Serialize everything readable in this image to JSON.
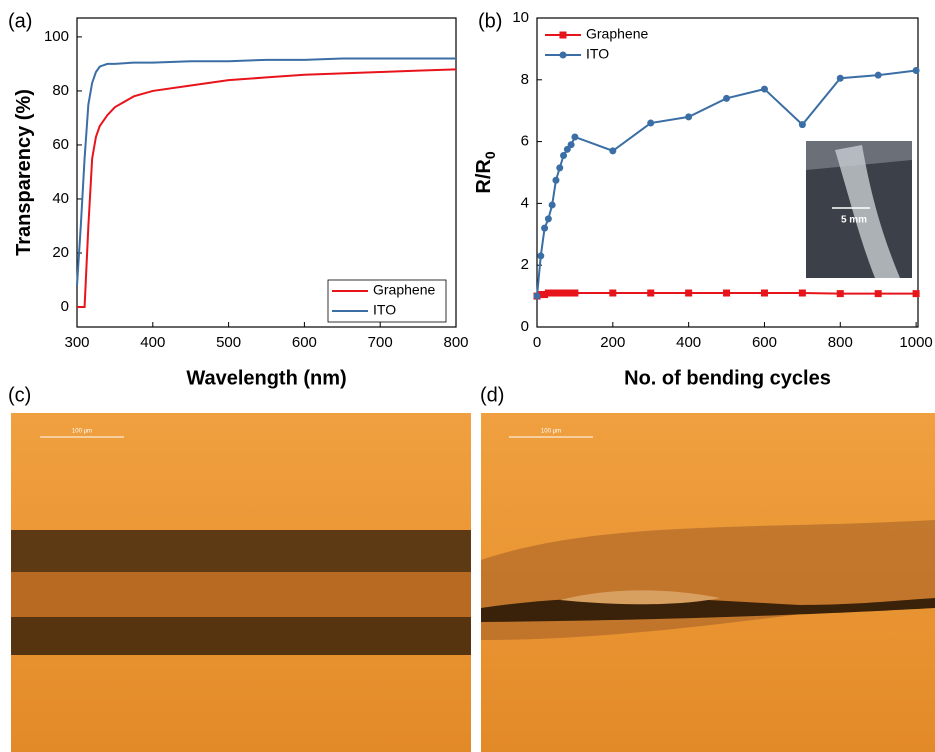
{
  "chart_data": [
    {
      "type": "line",
      "panel_label": "(a)",
      "xlabel": "Wavelength (nm)",
      "ylabel": "Transparency (%)",
      "x": [
        300,
        305,
        310,
        315,
        320,
        325,
        330,
        340,
        350,
        375,
        400,
        450,
        500,
        550,
        600,
        650,
        700,
        750,
        800
      ],
      "series": [
        {
          "name": "Graphene",
          "color": "#e8141c",
          "values": [
            0,
            0,
            0,
            30,
            55,
            63,
            67,
            71,
            74,
            78,
            80,
            82,
            84,
            85,
            86,
            86.5,
            87,
            87.5,
            88
          ]
        },
        {
          "name": "ITO",
          "color": "#3a6ea5",
          "values": [
            8,
            30,
            55,
            75,
            83,
            87,
            89,
            90,
            90,
            90.5,
            90.5,
            91,
            91,
            91.5,
            91.5,
            92,
            92,
            92,
            92
          ]
        }
      ],
      "xlim": [
        300,
        800
      ],
      "ylim": [
        -7.4,
        107
      ],
      "xticks": [
        300,
        400,
        500,
        600,
        700,
        800
      ],
      "yticks": [
        0,
        20,
        40,
        60,
        80,
        100
      ],
      "legend": "lower right"
    },
    {
      "type": "line",
      "panel_label": "(b)",
      "xlabel": "No. of bending cycles",
      "ylabel": "R/R",
      "ylabel_subscript": "0",
      "inset_label": "5 mm",
      "x": [
        0,
        10,
        20,
        30,
        40,
        50,
        60,
        70,
        80,
        90,
        100,
        200,
        300,
        400,
        500,
        600,
        700,
        800,
        900,
        1000
      ],
      "series": [
        {
          "name": "Graphene",
          "color": "#e8141c",
          "marker": "square",
          "values": [
            1.0,
            1.05,
            1.05,
            1.1,
            1.1,
            1.1,
            1.1,
            1.1,
            1.1,
            1.1,
            1.1,
            1.1,
            1.1,
            1.1,
            1.1,
            1.1,
            1.1,
            1.08,
            1.08,
            1.08
          ]
        },
        {
          "name": "ITO",
          "color": "#3a6ea5",
          "marker": "circle",
          "values": [
            1.0,
            2.3,
            3.2,
            3.5,
            3.95,
            4.75,
            5.15,
            5.55,
            5.75,
            5.9,
            6.15,
            5.7,
            6.6,
            6.8,
            7.4,
            7.7,
            6.55,
            8.05,
            8.15,
            8.3
          ]
        }
      ],
      "xlim": [
        0,
        1005
      ],
      "ylim": [
        0,
        10
      ],
      "xticks": [
        0,
        200,
        400,
        600,
        800,
        1000
      ],
      "yticks": [
        0,
        2,
        4,
        6,
        8,
        10
      ],
      "legend": "upper left"
    }
  ],
  "micrographs": [
    {
      "label": "(c)",
      "scale_bar": "100 µm"
    },
    {
      "label": "(d)",
      "scale_bar": "100 µm"
    }
  ]
}
